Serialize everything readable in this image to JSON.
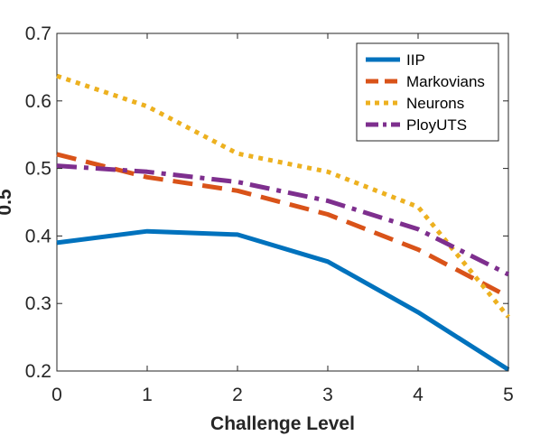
{
  "chart_data": {
    "type": "line",
    "title": "",
    "xlabel": "Challenge Level",
    "ylabel": "0.5",
    "xlim": [
      0,
      5
    ],
    "ylim": [
      0.2,
      0.7
    ],
    "x": [
      0,
      1,
      2,
      3,
      4,
      5
    ],
    "xticks": [
      "0",
      "1",
      "2",
      "3",
      "4",
      "5"
    ],
    "yticks": [
      "0.2",
      "0.3",
      "0.4",
      "0.5",
      "0.6",
      "0.7"
    ],
    "grid": false,
    "legend_position": "top-right",
    "series": [
      {
        "name": "IIP",
        "style": "solid",
        "color": "#0072BD",
        "values": [
          0.39,
          0.407,
          0.402,
          0.362,
          0.287,
          0.202
        ]
      },
      {
        "name": "Markovians",
        "style": "dashed",
        "color": "#D95319",
        "values": [
          0.521,
          0.487,
          0.467,
          0.432,
          0.38,
          0.31
        ]
      },
      {
        "name": "Neurons",
        "style": "dotted",
        "color": "#EDB120",
        "values": [
          0.637,
          0.592,
          0.522,
          0.495,
          0.443,
          0.28
        ]
      },
      {
        "name": "PloyUTS",
        "style": "dashdot",
        "color": "#7E2F8E",
        "values": [
          0.504,
          0.495,
          0.48,
          0.452,
          0.41,
          0.343
        ]
      }
    ]
  }
}
